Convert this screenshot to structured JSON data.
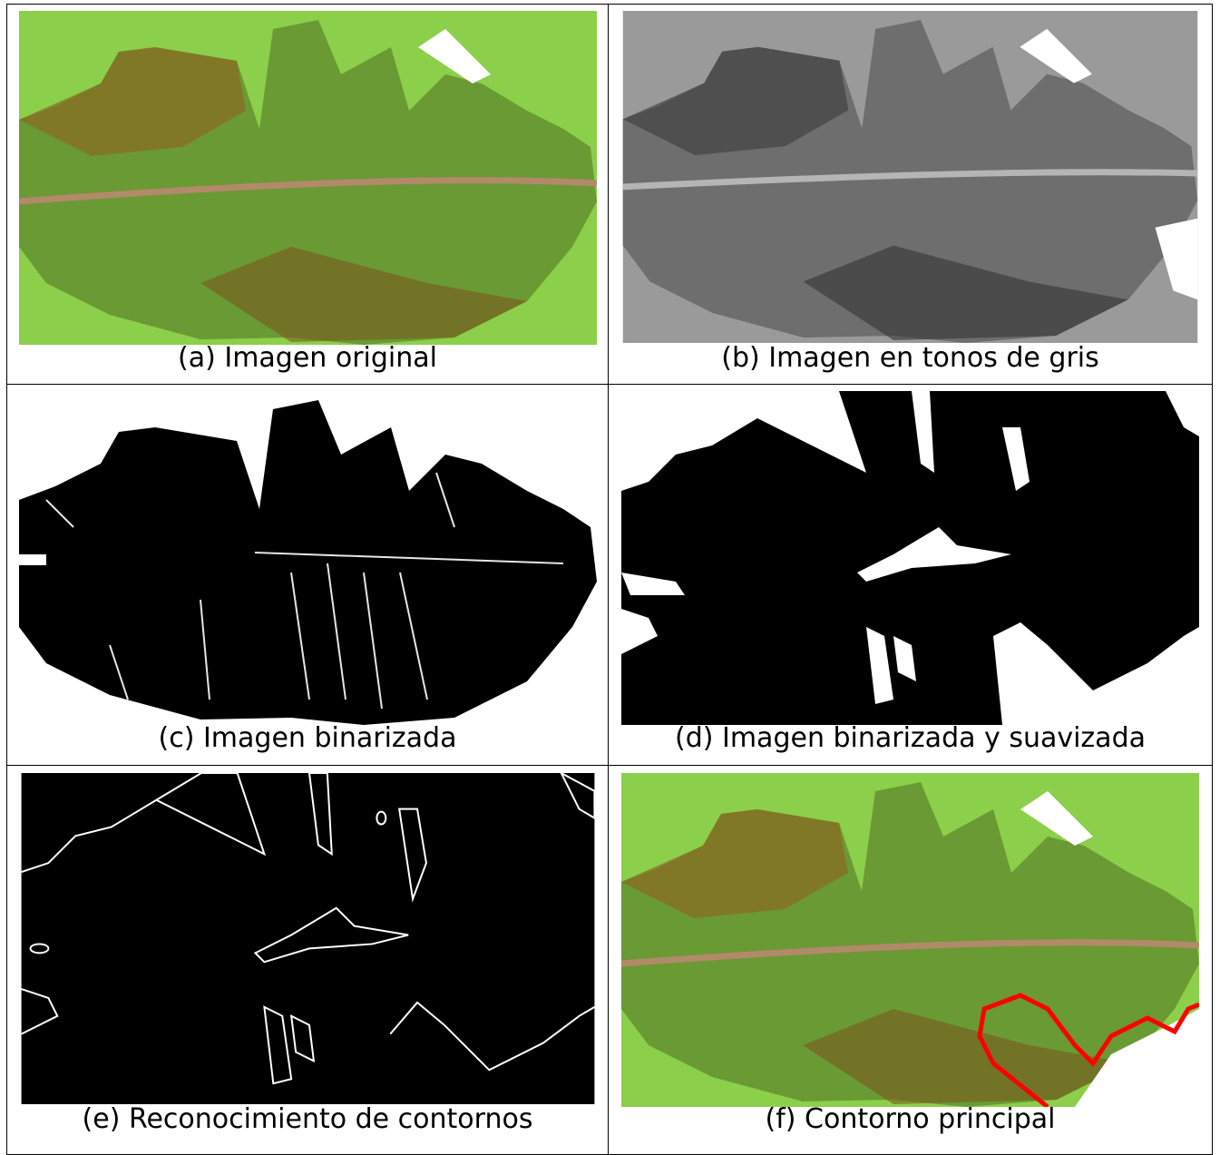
{
  "panels": [
    {
      "caption": "(a) Imagen original"
    },
    {
      "caption": "(b) Imagen en tonos de gris"
    },
    {
      "caption": "(c) Imagen binarizada"
    },
    {
      "caption": "(d) Imagen binarizada y suavizada"
    },
    {
      "caption": "(e) Reconocimiento de contornos"
    },
    {
      "caption": "(f) Contorno principal"
    }
  ]
}
